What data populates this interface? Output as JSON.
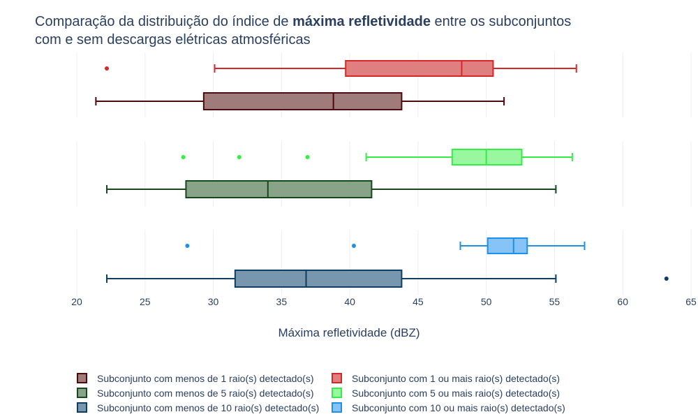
{
  "title": {
    "prefix": "Comparação da distribuição do índice de ",
    "bold": "máxima refletividade",
    "suffix_line1": " entre os subconjuntos",
    "line2": "com e sem descargas elétricas atmosféricas"
  },
  "chart_data": {
    "type": "box",
    "xlabel": "Máxima refletividade (dBZ)",
    "xlim": [
      20,
      65
    ],
    "xticks": [
      20,
      25,
      30,
      35,
      40,
      45,
      50,
      55,
      60,
      65
    ],
    "grid": true,
    "legend_position": "bottom",
    "panels": [
      {
        "series": [
          {
            "name": "Subconjunto com 1 ou mais raio(s) detectado(s)",
            "color": "#d62728",
            "fill": "#e07f80",
            "whisker_low": 30.1,
            "q1": 39.7,
            "median": 48.2,
            "q3": 50.5,
            "whisker_high": 56.6,
            "outliers": [
              22.2
            ]
          },
          {
            "name": "Subconjunto com menos de 1 raio(s) detectado(s)",
            "color": "#4d0a0c",
            "fill": "#a07b7c",
            "whisker_low": 21.4,
            "q1": 29.3,
            "median": 38.8,
            "q3": 43.8,
            "whisker_high": 51.3,
            "outliers": []
          }
        ]
      },
      {
        "series": [
          {
            "name": "Subconjunto com 5 ou mais raio(s) detectado(s)",
            "color": "#33ee44",
            "fill": "#99f79f",
            "whisker_low": 41.2,
            "q1": 47.5,
            "median": 50.0,
            "q3": 52.6,
            "whisker_high": 56.3,
            "outliers": [
              27.8,
              31.9,
              36.9
            ]
          },
          {
            "name": "Subconjunto com menos de 5 raio(s) detectado(s)",
            "color": "#15481a",
            "fill": "#89a388",
            "whisker_low": 22.2,
            "q1": 28.0,
            "median": 34.0,
            "q3": 41.6,
            "whisker_high": 55.1,
            "outliers": []
          }
        ]
      },
      {
        "series": [
          {
            "name": "Subconjunto com 10 ou mais raio(s) detectado(s)",
            "color": "#1f8fe8",
            "fill": "#86c3f7",
            "whisker_low": 48.1,
            "q1": 50.1,
            "median": 52.0,
            "q3": 53.0,
            "whisker_high": 57.2,
            "outliers": [
              28.1,
              40.3
            ]
          },
          {
            "name": "Subconjunto com menos de 10 raio(s) detectado(s)",
            "color": "#0f3d63",
            "fill": "#7896ad",
            "whisker_low": 22.2,
            "q1": 31.6,
            "median": 36.8,
            "q3": 43.8,
            "whisker_high": 55.1,
            "outliers": [
              63.2
            ]
          }
        ]
      }
    ],
    "legend": [
      {
        "label": "Subconjunto com menos de 1 raio(s) detectado(s)",
        "color": "#4d0a0c",
        "fill": "#a07b7c"
      },
      {
        "label": "Subconjunto com 1 ou mais raio(s) detectado(s)",
        "color": "#d62728",
        "fill": "#e07f80"
      },
      {
        "label": "Subconjunto com menos de 5 raio(s) detectado(s)",
        "color": "#15481a",
        "fill": "#89a388"
      },
      {
        "label": "Subconjunto com 5 ou mais raio(s) detectado(s)",
        "color": "#33ee44",
        "fill": "#99f79f"
      },
      {
        "label": "Subconjunto com menos de 10 raio(s) detectado(s)",
        "color": "#0f3d63",
        "fill": "#7896ad"
      },
      {
        "label": "Subconjunto com 10 ou mais raio(s) detectado(s)",
        "color": "#1f8fe8",
        "fill": "#86c3f7"
      }
    ]
  }
}
